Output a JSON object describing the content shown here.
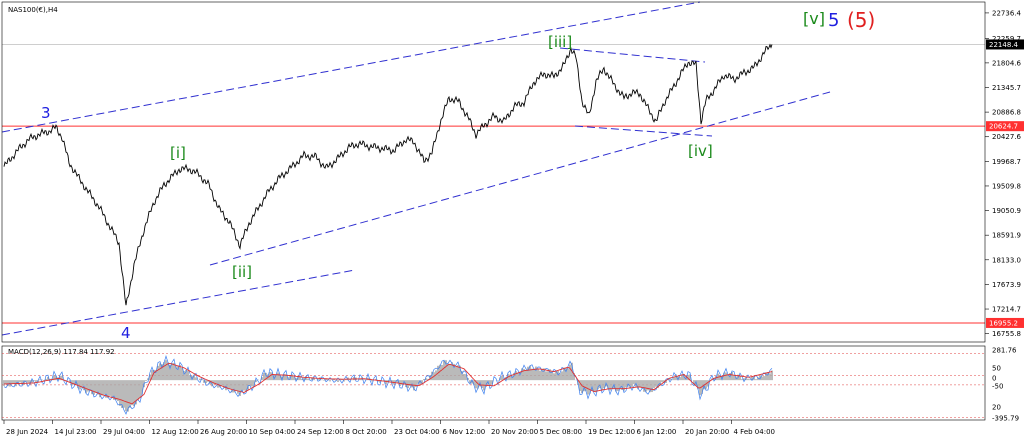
{
  "header": {
    "symbol_label": "NAS100(€),H4",
    "macd_label": "MACD(12,26,9) 117.84 117.92"
  },
  "chart_data": {
    "type": "line",
    "title": "",
    "price_ticks": [
      "22736.4",
      "22259.7",
      "21804.6",
      "21345.7",
      "20886.8",
      "20427.6",
      "19968.7",
      "19509.8",
      "19050.9",
      "18591.9",
      "18133.0",
      "17673.9",
      "17214.7",
      "16755.8"
    ],
    "time_ticks": [
      "28 Jun 2024",
      "14 Jul 23:00",
      "29 Jul 04:00",
      "12 Aug 12:00",
      "26 Aug 20:00",
      "10 Sep 04:00",
      "24 Sep 12:00",
      "8 Oct 20:00",
      "23 Oct 04:00",
      "6 Nov 12:00",
      "20 Nov 20:00",
      "5 Dec 08:00",
      "19 Dec 12:00",
      "6 Jan 12:00",
      "20 Jan 20:00",
      "4 Feb 04:00"
    ],
    "macd_ticks": [
      "281.76",
      "50",
      "0",
      "-50",
      "20",
      "-395.79"
    ],
    "current_price": "22148.4",
    "levels": [
      {
        "value": 20624.7,
        "label": "20624.7",
        "color": "#ff3030"
      },
      {
        "value": 16955.2,
        "label": "16955.2",
        "color": "#ff3030"
      }
    ],
    "price_series": [
      [
        0,
        19870
      ],
      [
        15,
        20200
      ],
      [
        25,
        20380
      ],
      [
        35,
        20470
      ],
      [
        45,
        20530
      ],
      [
        52,
        20600
      ],
      [
        58,
        20420
      ],
      [
        65,
        19950
      ],
      [
        75,
        19650
      ],
      [
        85,
        19380
      ],
      [
        95,
        19120
      ],
      [
        105,
        18780
      ],
      [
        115,
        18450
      ],
      [
        122,
        17250
      ],
      [
        130,
        18030
      ],
      [
        140,
        18700
      ],
      [
        150,
        19210
      ],
      [
        160,
        19530
      ],
      [
        175,
        19820
      ],
      [
        185,
        19830
      ],
      [
        195,
        19720
      ],
      [
        205,
        19520
      ],
      [
        215,
        19080
      ],
      [
        225,
        18850
      ],
      [
        236,
        18400
      ],
      [
        245,
        18810
      ],
      [
        255,
        19120
      ],
      [
        265,
        19420
      ],
      [
        275,
        19650
      ],
      [
        290,
        19900
      ],
      [
        300,
        20080
      ],
      [
        312,
        20050
      ],
      [
        322,
        19840
      ],
      [
        332,
        19990
      ],
      [
        345,
        20230
      ],
      [
        355,
        20300
      ],
      [
        365,
        20250
      ],
      [
        378,
        20210
      ],
      [
        390,
        20170
      ],
      [
        402,
        20380
      ],
      [
        410,
        20330
      ],
      [
        420,
        19970
      ],
      [
        428,
        20130
      ],
      [
        436,
        20680
      ],
      [
        445,
        21150
      ],
      [
        455,
        21080
      ],
      [
        465,
        20750
      ],
      [
        472,
        20470
      ],
      [
        480,
        20640
      ],
      [
        490,
        20810
      ],
      [
        500,
        20710
      ],
      [
        510,
        20990
      ],
      [
        520,
        21070
      ],
      [
        530,
        21450
      ],
      [
        540,
        21600
      ],
      [
        550,
        21550
      ],
      [
        560,
        21760
      ],
      [
        567,
        22080
      ],
      [
        572,
        21900
      ],
      [
        578,
        21100
      ],
      [
        585,
        20800
      ],
      [
        592,
        21460
      ],
      [
        600,
        21700
      ],
      [
        610,
        21400
      ],
      [
        620,
        21150
      ],
      [
        628,
        21250
      ],
      [
        636,
        21230
      ],
      [
        645,
        20920
      ],
      [
        652,
        20710
      ],
      [
        660,
        21060
      ],
      [
        668,
        21310
      ],
      [
        676,
        21570
      ],
      [
        684,
        21820
      ],
      [
        692,
        21770
      ],
      [
        697,
        20720
      ],
      [
        702,
        21100
      ],
      [
        710,
        21300
      ],
      [
        720,
        21580
      ],
      [
        730,
        21500
      ],
      [
        740,
        21620
      ],
      [
        750,
        21720
      ],
      [
        758,
        21930
      ],
      [
        764,
        22090
      ],
      [
        768,
        22148
      ]
    ],
    "macd_hist": [
      [
        0,
        -60
      ],
      [
        30,
        -25
      ],
      [
        55,
        50
      ],
      [
        65,
        -20
      ],
      [
        80,
        -110
      ],
      [
        95,
        -160
      ],
      [
        110,
        -190
      ],
      [
        122,
        -330
      ],
      [
        135,
        -220
      ],
      [
        145,
        60
      ],
      [
        160,
        200
      ],
      [
        175,
        150
      ],
      [
        190,
        40
      ],
      [
        205,
        -40
      ],
      [
        220,
        -80
      ],
      [
        236,
        -150
      ],
      [
        250,
        -50
      ],
      [
        262,
        80
      ],
      [
        275,
        60
      ],
      [
        290,
        40
      ],
      [
        305,
        20
      ],
      [
        320,
        10
      ],
      [
        335,
        -5
      ],
      [
        350,
        20
      ],
      [
        365,
        10
      ],
      [
        380,
        -20
      ],
      [
        395,
        -40
      ],
      [
        410,
        -90
      ],
      [
        425,
        40
      ],
      [
        440,
        200
      ],
      [
        455,
        150
      ],
      [
        470,
        -70
      ],
      [
        480,
        -90
      ],
      [
        495,
        20
      ],
      [
        510,
        70
      ],
      [
        525,
        140
      ],
      [
        540,
        110
      ],
      [
        555,
        80
      ],
      [
        568,
        170
      ],
      [
        575,
        -110
      ],
      [
        585,
        -140
      ],
      [
        600,
        -80
      ],
      [
        615,
        -110
      ],
      [
        630,
        -60
      ],
      [
        645,
        -130
      ],
      [
        655,
        -60
      ],
      [
        670,
        40
      ],
      [
        685,
        60
      ],
      [
        697,
        -160
      ],
      [
        710,
        40
      ],
      [
        725,
        80
      ],
      [
        740,
        20
      ],
      [
        755,
        30
      ],
      [
        768,
        100
      ]
    ],
    "macd_signal": [
      [
        0,
        -40
      ],
      [
        30,
        -30
      ],
      [
        55,
        20
      ],
      [
        70,
        -40
      ],
      [
        85,
        -100
      ],
      [
        100,
        -160
      ],
      [
        115,
        -200
      ],
      [
        128,
        -250
      ],
      [
        140,
        -150
      ],
      [
        150,
        80
      ],
      [
        165,
        180
      ],
      [
        180,
        130
      ],
      [
        195,
        40
      ],
      [
        210,
        -30
      ],
      [
        225,
        -90
      ],
      [
        240,
        -130
      ],
      [
        255,
        -40
      ],
      [
        268,
        60
      ],
      [
        285,
        50
      ],
      [
        300,
        30
      ],
      [
        320,
        15
      ],
      [
        340,
        10
      ],
      [
        360,
        15
      ],
      [
        380,
        -10
      ],
      [
        400,
        -40
      ],
      [
        415,
        -60
      ],
      [
        430,
        40
      ],
      [
        445,
        170
      ],
      [
        460,
        120
      ],
      [
        475,
        -50
      ],
      [
        490,
        -60
      ],
      [
        505,
        40
      ],
      [
        520,
        100
      ],
      [
        535,
        120
      ],
      [
        550,
        90
      ],
      [
        565,
        140
      ],
      [
        578,
        -60
      ],
      [
        590,
        -120
      ],
      [
        605,
        -90
      ],
      [
        620,
        -90
      ],
      [
        635,
        -70
      ],
      [
        650,
        -100
      ],
      [
        665,
        20
      ],
      [
        680,
        60
      ],
      [
        695,
        -90
      ],
      [
        710,
        20
      ],
      [
        725,
        60
      ],
      [
        745,
        30
      ],
      [
        768,
        90
      ]
    ],
    "wave_labels": [
      {
        "text": "3",
        "color": "#2020e0"
      },
      {
        "text": "4",
        "color": "#2020e0"
      },
      {
        "text": "[i]",
        "color": "#1a8a1a"
      },
      {
        "text": "[ii]",
        "color": "#1a8a1a"
      },
      {
        "text": "[iii]",
        "color": "#1a8a1a"
      },
      {
        "text": "[iv]",
        "color": "#1a8a1a"
      },
      {
        "text": "[v]",
        "color": "#1a8a1a"
      },
      {
        "text": "5",
        "color": "#2020e0"
      },
      {
        "text": "(5)",
        "color": "#e02020"
      }
    ],
    "colors": {
      "price": "#000000",
      "channel": "#3030d0",
      "level": "#ff3030",
      "macd_hist": "#a8a8a8",
      "macd_signal": "#e03030",
      "macd_line": "#3a7ff0"
    }
  }
}
